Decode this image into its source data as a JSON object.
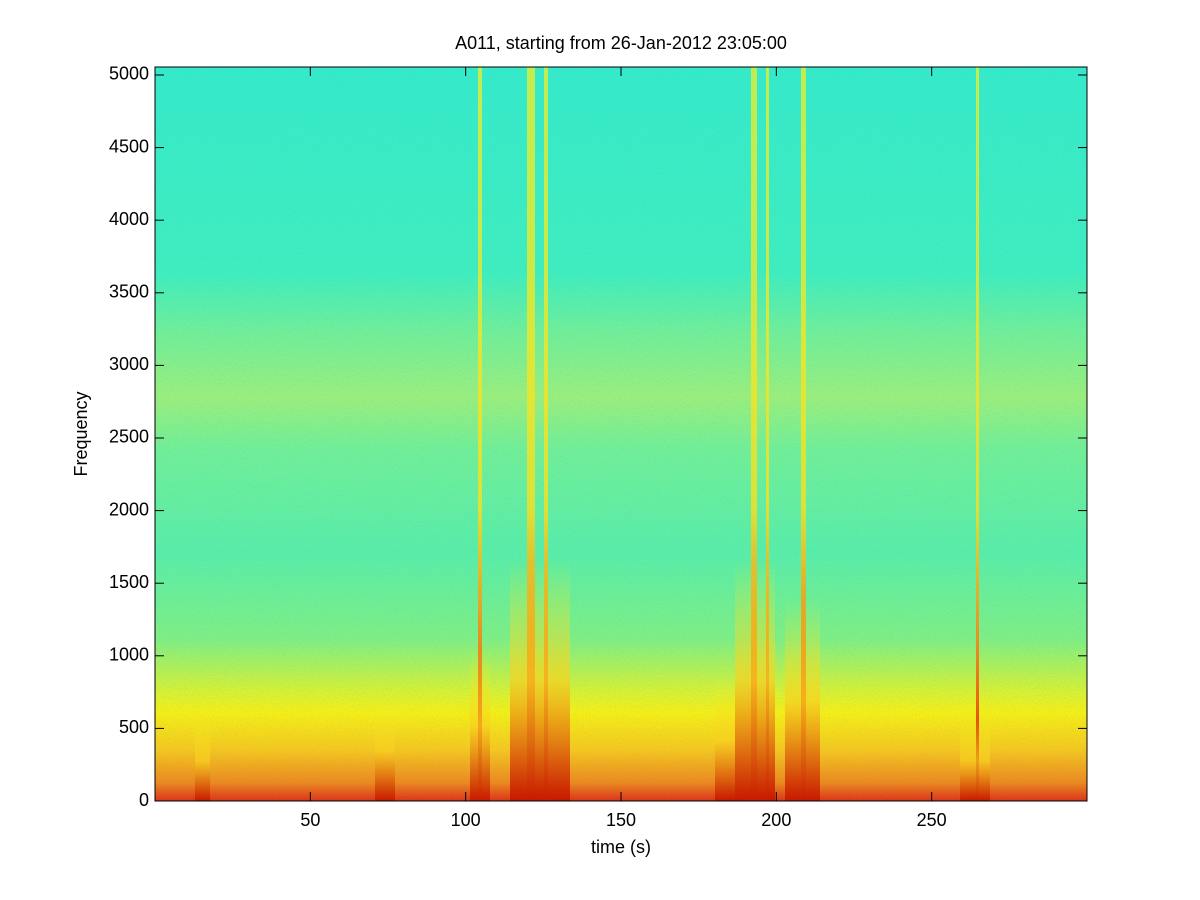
{
  "chart_data": {
    "type": "spectrogram",
    "title": "A011, starting from 26-Jan-2012 23:05:00",
    "x_label": "time (s)",
    "y_label": "Frequency",
    "xlim": [
      0,
      300
    ],
    "xticks": [
      50,
      100,
      150,
      200,
      250
    ],
    "ylim": [
      0,
      5055
    ],
    "yticks": [
      0,
      500,
      1000,
      1500,
      2000,
      2500,
      3000,
      3500,
      4000,
      4500,
      5000
    ],
    "colormap": "jet"
  }
}
